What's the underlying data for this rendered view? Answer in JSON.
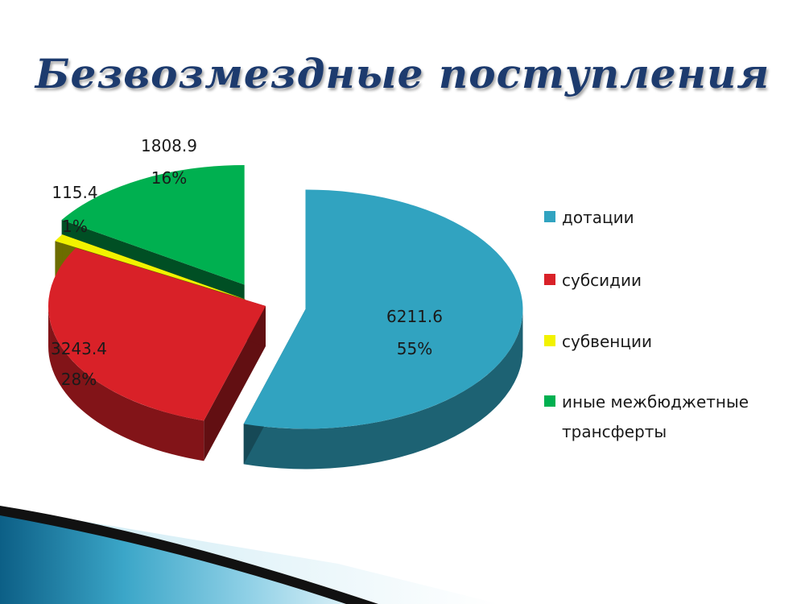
{
  "slide": {
    "title": "Безвозмездные поступления"
  },
  "colors": {
    "title": "#1d3b6e",
    "dotatsii": "#31a3c0",
    "subsidii": "#d92128",
    "subventsii": "#f2f200",
    "inye": "#00b050"
  },
  "chart_data": {
    "type": "pie",
    "title": "Безвозмездные поступления",
    "series": [
      {
        "categories": [
          "дотации",
          "субсидии",
          "субвенции",
          "иные межбюджетные трансферты"
        ],
        "values": [
          6211.6,
          3243.4,
          115.4,
          1808.9
        ],
        "value_labels": [
          "6211.6",
          "3243.4",
          "115.4",
          "1808.9"
        ],
        "percent_labels": [
          "55%",
          "28%",
          "1%",
          "16%"
        ]
      }
    ],
    "legend": {
      "placement": "right",
      "items": [
        {
          "label": "дотации",
          "color": "#31a3c0"
        },
        {
          "label": "субсидии",
          "color": "#d92128"
        },
        {
          "label": "субвенции",
          "color": "#f2f200"
        },
        {
          "label_line1": "иные межбюджетные",
          "label_line2": "трансферты",
          "color": "#00b050"
        }
      ]
    },
    "style": "3d-exploded"
  }
}
